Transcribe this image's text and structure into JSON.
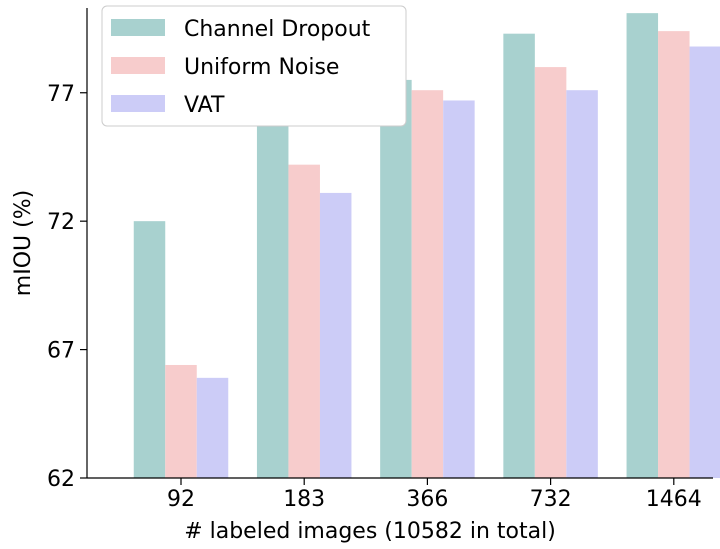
{
  "chart_data": {
    "type": "bar",
    "title": "",
    "xlabel": "# labeled images (10582 in total)",
    "ylabel": "mIOU (%)",
    "ylim": [
      62,
      80.3
    ],
    "yticks": [
      62,
      67,
      72,
      77
    ],
    "categories": [
      "92",
      "183",
      "366",
      "732",
      "1464"
    ],
    "series": [
      {
        "name": "Channel Dropout",
        "color": "#a8d1cf",
        "values": [
          72.0,
          75.8,
          77.5,
          79.3,
          80.1
        ]
      },
      {
        "name": "Uniform Noise",
        "color": "#f7cccc",
        "values": [
          66.4,
          74.2,
          77.1,
          78.0,
          79.4
        ]
      },
      {
        "name": "VAT",
        "color": "#ccccf7",
        "values": [
          65.9,
          73.1,
          76.7,
          77.1,
          78.8
        ]
      }
    ],
    "legend_position": "top-left",
    "grid": false
  }
}
